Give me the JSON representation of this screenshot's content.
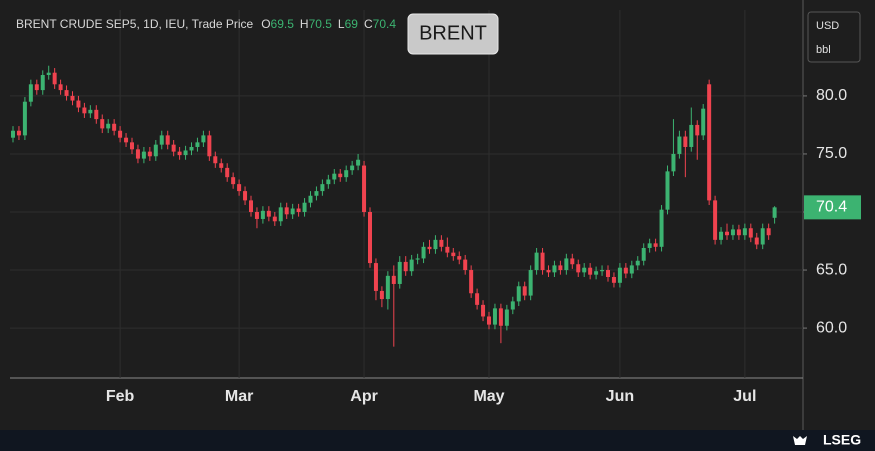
{
  "chart_data": {
    "type": "candlestick",
    "title": "BRENT CRUDE SEP5, 1D, IEU, Trade Price",
    "legend_labels": [
      "O",
      "H",
      "L",
      "C"
    ],
    "badge": "BRENT",
    "currency": "USD",
    "unit": "bbl",
    "source": "LSEG",
    "up_color": "#3cb371",
    "down_color": "#f0434f",
    "grid": true,
    "ylim": [
      55.7,
      87.4
    ],
    "yticks": [
      {
        "value": 60,
        "label": "60.0"
      },
      {
        "value": 65,
        "label": "65.0"
      },
      {
        "value": 70,
        "label": "70.0"
      },
      {
        "value": 75,
        "label": "75.0"
      },
      {
        "value": 80,
        "label": "80.0"
      }
    ],
    "categories": [
      null,
      null,
      null,
      null,
      null,
      null,
      null,
      null,
      null,
      null,
      null,
      null,
      null,
      null,
      null,
      null,
      null,
      null,
      "Feb",
      null,
      null,
      null,
      null,
      null,
      null,
      null,
      null,
      null,
      null,
      null,
      null,
      null,
      null,
      null,
      null,
      null,
      null,
      null,
      "Mar",
      null,
      null,
      null,
      null,
      null,
      null,
      null,
      null,
      null,
      null,
      null,
      null,
      null,
      null,
      null,
      null,
      null,
      null,
      null,
      null,
      "Apr",
      null,
      null,
      null,
      null,
      null,
      null,
      null,
      null,
      null,
      null,
      null,
      null,
      null,
      null,
      null,
      null,
      null,
      null,
      null,
      null,
      "May",
      null,
      null,
      null,
      null,
      null,
      null,
      null,
      null,
      null,
      null,
      null,
      null,
      null,
      null,
      null,
      null,
      null,
      null,
      null,
      null,
      null,
      "Jun",
      null,
      null,
      null,
      null,
      null,
      null,
      null,
      null,
      null,
      null,
      null,
      null,
      null,
      null,
      null,
      null,
      null,
      null,
      null,
      null,
      "Jul",
      null,
      null,
      null,
      null,
      null
    ],
    "open": [
      76.4,
      77.0,
      76.6,
      79.5,
      81.0,
      80.5,
      81.8,
      82.0,
      81.0,
      80.5,
      80.0,
      79.6,
      79.0,
      78.5,
      78.8,
      78.0,
      77.2,
      77.6,
      77.0,
      76.4,
      76.0,
      75.4,
      74.6,
      75.2,
      74.8,
      75.8,
      76.6,
      75.8,
      75.2,
      74.9,
      75.3,
      75.6,
      76.0,
      76.6,
      74.8,
      74.2,
      73.8,
      73.0,
      72.4,
      71.8,
      71.0,
      70.0,
      69.4,
      70.1,
      69.6,
      69.2,
      70.4,
      69.8,
      70.3,
      70.0,
      70.8,
      71.4,
      71.8,
      72.4,
      72.8,
      73.3,
      73.0,
      73.6,
      74.0,
      74.0,
      70.0,
      65.6,
      63.2,
      62.5,
      64.5,
      63.8,
      65.7,
      64.9,
      65.9,
      66.0,
      67.0,
      66.8,
      67.6,
      67.0,
      66.5,
      66.2,
      65.9,
      65.0,
      63.0,
      62.0,
      61.0,
      60.3,
      61.7,
      60.2,
      61.6,
      62.3,
      63.6,
      62.8,
      65.0,
      66.5,
      65.0,
      64.8,
      65.4,
      65.0,
      66.0,
      65.5,
      64.8,
      65.2,
      64.6,
      64.9,
      65.0,
      64.4,
      63.9,
      65.2,
      64.7,
      65.4,
      65.8,
      66.9,
      67.3,
      67.0,
      70.2,
      73.5,
      75.0,
      76.5,
      75.6,
      77.5,
      76.6,
      81.0,
      71.0,
      67.6,
      68.3,
      68.0,
      68.5,
      68.0,
      68.6,
      67.8,
      67.2,
      68.6,
      69.5
    ],
    "high": [
      77.4,
      77.4,
      79.9,
      81.4,
      81.4,
      82.2,
      82.6,
      82.4,
      81.4,
      80.9,
      80.4,
      80.0,
      79.4,
      79.2,
      79.2,
      78.4,
      78.0,
      78.0,
      77.4,
      76.8,
      76.4,
      75.8,
      75.6,
      75.6,
      76.2,
      77.0,
      77.0,
      76.2,
      75.6,
      75.7,
      76.0,
      76.4,
      77.0,
      77.0,
      75.2,
      74.6,
      74.2,
      73.4,
      72.8,
      72.2,
      71.4,
      70.4,
      70.5,
      70.5,
      70.0,
      70.8,
      70.8,
      70.7,
      70.7,
      71.2,
      71.8,
      72.2,
      72.8,
      73.2,
      73.7,
      73.7,
      74.0,
      74.4,
      75.0,
      74.4,
      70.4,
      66.0,
      63.6,
      64.9,
      65.4,
      66.2,
      66.2,
      66.3,
      66.4,
      67.4,
      67.6,
      68.0,
      68.0,
      67.8,
      66.9,
      66.6,
      66.3,
      65.4,
      63.4,
      62.4,
      61.4,
      62.1,
      62.1,
      62.0,
      62.7,
      64.0,
      64.0,
      65.4,
      66.9,
      66.9,
      65.4,
      65.8,
      65.8,
      66.4,
      66.4,
      65.9,
      65.6,
      65.6,
      65.3,
      65.4,
      65.4,
      64.8,
      65.6,
      65.6,
      65.8,
      66.2,
      67.3,
      67.7,
      67.7,
      70.6,
      74.0,
      78.0,
      77.0,
      77.0,
      79.0,
      77.9,
      79.3,
      81.4,
      71.4,
      68.7,
      69.0,
      68.9,
      68.9,
      69.0,
      69.0,
      68.2,
      69.0,
      69.0,
      70.5
    ],
    "low": [
      76.0,
      76.2,
      76.2,
      79.1,
      80.1,
      80.1,
      81.4,
      80.6,
      80.1,
      79.6,
      79.2,
      78.6,
      78.1,
      78.1,
      77.6,
      76.8,
      76.8,
      76.6,
      76.0,
      75.6,
      75.0,
      74.2,
      74.2,
      74.4,
      74.4,
      75.4,
      75.4,
      74.8,
      74.5,
      74.5,
      74.9,
      75.2,
      75.6,
      74.4,
      73.8,
      73.4,
      72.6,
      72.0,
      71.4,
      70.6,
      69.6,
      68.6,
      69.0,
      69.2,
      68.8,
      68.8,
      69.4,
      69.4,
      69.6,
      69.6,
      70.4,
      71.0,
      71.4,
      72.0,
      72.4,
      72.6,
      72.6,
      73.2,
      73.6,
      69.6,
      65.2,
      62.4,
      61.8,
      61.6,
      58.4,
      63.4,
      64.5,
      64.5,
      65.5,
      65.6,
      66.4,
      66.4,
      66.6,
      66.1,
      65.8,
      65.5,
      64.6,
      62.6,
      61.6,
      60.6,
      59.9,
      59.9,
      58.7,
      59.8,
      61.2,
      61.9,
      62.4,
      62.4,
      64.6,
      64.6,
      64.4,
      64.4,
      64.6,
      64.6,
      65.1,
      64.4,
      64.4,
      64.2,
      64.2,
      64.5,
      64.0,
      63.5,
      63.5,
      64.3,
      64.3,
      65.0,
      65.4,
      66.5,
      66.6,
      66.6,
      69.8,
      73.1,
      74.6,
      73.0,
      75.2,
      74.5,
      76.2,
      70.6,
      67.2,
      67.2,
      67.6,
      67.6,
      67.6,
      67.6,
      67.4,
      66.8,
      66.8,
      67.6,
      69.0
    ],
    "close": [
      77.0,
      76.6,
      79.5,
      81.0,
      80.5,
      81.8,
      82.0,
      81.0,
      80.5,
      80.0,
      79.6,
      79.0,
      78.5,
      78.8,
      78.0,
      77.2,
      77.6,
      77.0,
      76.4,
      76.0,
      75.4,
      74.6,
      75.2,
      74.8,
      75.8,
      76.6,
      75.8,
      75.2,
      74.9,
      75.3,
      75.6,
      76.0,
      76.6,
      74.8,
      74.2,
      73.8,
      73.0,
      72.4,
      71.8,
      71.0,
      70.0,
      69.4,
      70.1,
      69.6,
      69.2,
      70.4,
      69.8,
      70.3,
      70.0,
      70.8,
      71.4,
      71.8,
      72.4,
      72.8,
      73.3,
      73.0,
      73.6,
      74.0,
      74.5,
      70.0,
      65.6,
      63.2,
      62.5,
      64.5,
      63.8,
      65.7,
      64.9,
      65.9,
      66.0,
      67.0,
      66.8,
      67.6,
      67.0,
      66.5,
      66.2,
      65.9,
      65.0,
      63.0,
      62.0,
      61.0,
      60.3,
      61.7,
      60.2,
      61.6,
      62.3,
      63.6,
      62.8,
      65.0,
      66.5,
      65.0,
      64.8,
      65.4,
      65.0,
      66.0,
      65.5,
      64.8,
      65.2,
      64.6,
      64.9,
      65.0,
      64.4,
      63.9,
      65.2,
      64.7,
      65.4,
      65.8,
      66.9,
      67.3,
      67.0,
      70.2,
      73.5,
      75.0,
      76.5,
      75.6,
      77.5,
      76.6,
      78.9,
      71.0,
      67.6,
      68.3,
      68.0,
      68.5,
      68.0,
      68.6,
      67.8,
      67.2,
      68.6,
      68.0,
      70.4
    ]
  }
}
